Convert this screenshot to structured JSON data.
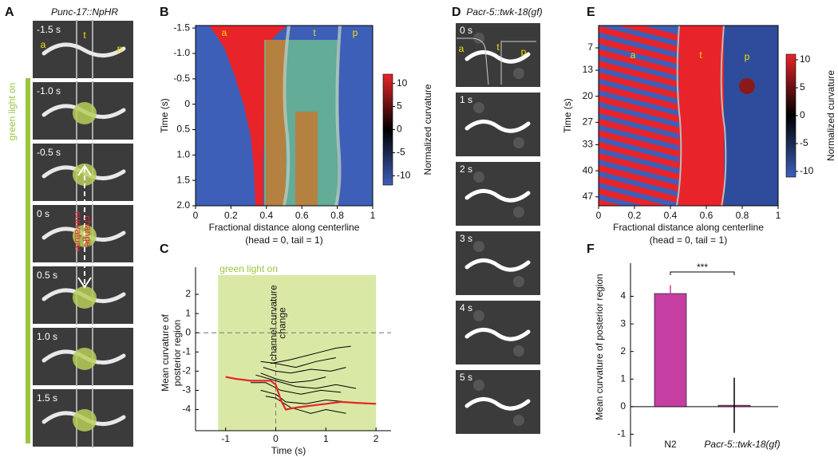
{
  "panel_labels": [
    "A",
    "B",
    "C",
    "D",
    "E",
    "F"
  ],
  "panel_a": {
    "title": "Punc-17::NpHR",
    "frames": [
      "-1.5 s",
      "-1.0 s",
      "-0.5 s",
      "0 s",
      "0.5 s",
      "1.0 s",
      "1.5 s"
    ],
    "regions": [
      "a",
      "t",
      "p"
    ],
    "side_label": "green light on",
    "arrow_label": [
      "curvature",
      "change"
    ]
  },
  "panel_d": {
    "title": "Pacr-5::twk-18(gf)",
    "frames": [
      "0 s",
      "1 s",
      "2 s",
      "3 s",
      "4 s",
      "5 s"
    ],
    "regions": [
      "a",
      "t",
      "p"
    ]
  },
  "chart_data": [
    {
      "type": "heatmap",
      "xlim": [
        0,
        1
      ],
      "xticks": [
        0,
        0.2,
        0.4,
        0.6,
        0.8,
        1
      ],
      "ylim": [
        -1.55,
        2.0
      ],
      "yticks": [
        -1.5,
        {
          "value": -1,
          "label": "-1.0"
        },
        -0.5,
        0,
        0.5,
        {
          "value": 1,
          "label": "1.0"
        },
        1.5,
        {
          "value": 2,
          "label": "2.0"
        }
      ],
      "xlabel": [
        "Fractional distance along centerline",
        "(head = 0, tail = 1)"
      ],
      "ylabel": "Time (s)",
      "colorbar": {
        "label": "Normalized curvature",
        "lim": [
          -12,
          12
        ],
        "ticks": [
          10,
          5,
          0,
          -5,
          -10
        ]
      },
      "region_labels": [
        "a",
        "t",
        "p"
      ]
    },
    {
      "type": "line",
      "xlim": [
        -1.6,
        2.3
      ],
      "ylim": [
        -5.1,
        3
      ],
      "xticks": [
        -1,
        0,
        1,
        2
      ],
      "yticks": [
        -4,
        -3,
        -2,
        -1,
        0,
        1,
        2
      ],
      "xlabel": "Time (s)",
      "ylabel": [
        "Mean curvature of",
        "posterior region"
      ],
      "highlight": {
        "x": [
          -1.15,
          2
        ],
        "label": "green light on",
        "color": "#d9e9a5"
      },
      "hlines": [
        0
      ],
      "vlines": [
        0
      ],
      "annotation": [
        "channel curvature",
        "change"
      ],
      "series": [
        {
          "color": "#000000",
          "x": [
            -0.1,
            0.3,
            0.6,
            0.9,
            1.2,
            1.5
          ],
          "values": [
            -1.6,
            -1.4,
            -1.2,
            -1.0,
            -0.8,
            -0.7
          ]
        },
        {
          "color": "#000000",
          "x": [
            -0.3,
            0,
            0.4,
            0.8,
            1.2
          ],
          "values": [
            -1.5,
            -1.6,
            -1.8,
            -1.5,
            -1.3
          ]
        },
        {
          "color": "#000000",
          "x": [
            -0.25,
            0,
            0.3,
            0.7,
            1.1,
            1.4
          ],
          "values": [
            -1.8,
            -2.0,
            -2.1,
            -1.9,
            -2.0,
            -1.8
          ]
        },
        {
          "color": "#000000",
          "x": [
            -0.3,
            0,
            0.3,
            0.7,
            1.0
          ],
          "values": [
            -2.1,
            -2.4,
            -2.6,
            -2.5,
            -2.3
          ]
        },
        {
          "color": "#000000",
          "x": [
            -0.4,
            0,
            0.4,
            0.8,
            1.2,
            1.6
          ],
          "values": [
            -2.2,
            -2.5,
            -2.8,
            -2.9,
            -2.7,
            -2.9
          ]
        },
        {
          "color": "#000000",
          "x": [
            -0.5,
            -0.2,
            0.1,
            0.5,
            0.9,
            1.3
          ],
          "values": [
            -2.6,
            -2.6,
            -3.0,
            -3.2,
            -3.0,
            -3.1
          ]
        },
        {
          "color": "#000000",
          "x": [
            -0.3,
            0,
            0.2,
            0.6,
            1.0,
            1.4,
            1.8
          ],
          "values": [
            -3.0,
            -3.2,
            -3.6,
            -3.7,
            -3.5,
            -3.6,
            -3.7
          ]
        },
        {
          "color": "#000000",
          "x": [
            -0.2,
            0,
            0.3,
            0.7,
            1.0,
            1.4
          ],
          "values": [
            -3.3,
            -3.4,
            -3.9,
            -4.2,
            -4.0,
            -4.2
          ]
        },
        {
          "color": "#e8242a",
          "x": [
            -1,
            -0.8,
            -0.5,
            -0.1,
            0,
            0.1,
            0.2,
            0.4,
            0.7,
            1,
            1.3,
            1.6,
            2
          ],
          "values": [
            -2.3,
            -2.4,
            -2.5,
            -2.5,
            -2.7,
            -3.5,
            -4.0,
            -3.9,
            -3.8,
            -3.7,
            -3.6,
            -3.65,
            -3.7
          ]
        }
      ]
    },
    {
      "type": "heatmap",
      "xlim": [
        0,
        1
      ],
      "xticks": [
        0,
        0.2,
        0.4,
        0.6,
        0.8,
        1
      ],
      "ylim": [
        1,
        49.4
      ],
      "yticks": [
        7,
        13,
        20,
        27,
        33,
        40,
        47
      ],
      "xlabel": [
        "Fractional distance along centerline",
        "(head = 0, tail = 1)"
      ],
      "ylabel": "Time (s)",
      "colorbar": {
        "label": "Normalized curvature",
        "lim": [
          -11,
          11
        ],
        "ticks": [
          10,
          5,
          0,
          -5,
          -10
        ]
      },
      "region_labels": [
        "a",
        "t",
        "p"
      ]
    },
    {
      "type": "bar",
      "categories": [
        "N2",
        "Pacr-5::twk-18(gf)"
      ],
      "values": [
        4.1,
        0.05
      ],
      "errors": [
        0.3,
        1.0
      ],
      "color": "#c53fa3",
      "ylim": [
        -1.45,
        5.2
      ],
      "yticks": [
        -1,
        0,
        1,
        2,
        3,
        4
      ],
      "ylabel": "Mean curvature of posterior region",
      "significance": "***"
    }
  ]
}
